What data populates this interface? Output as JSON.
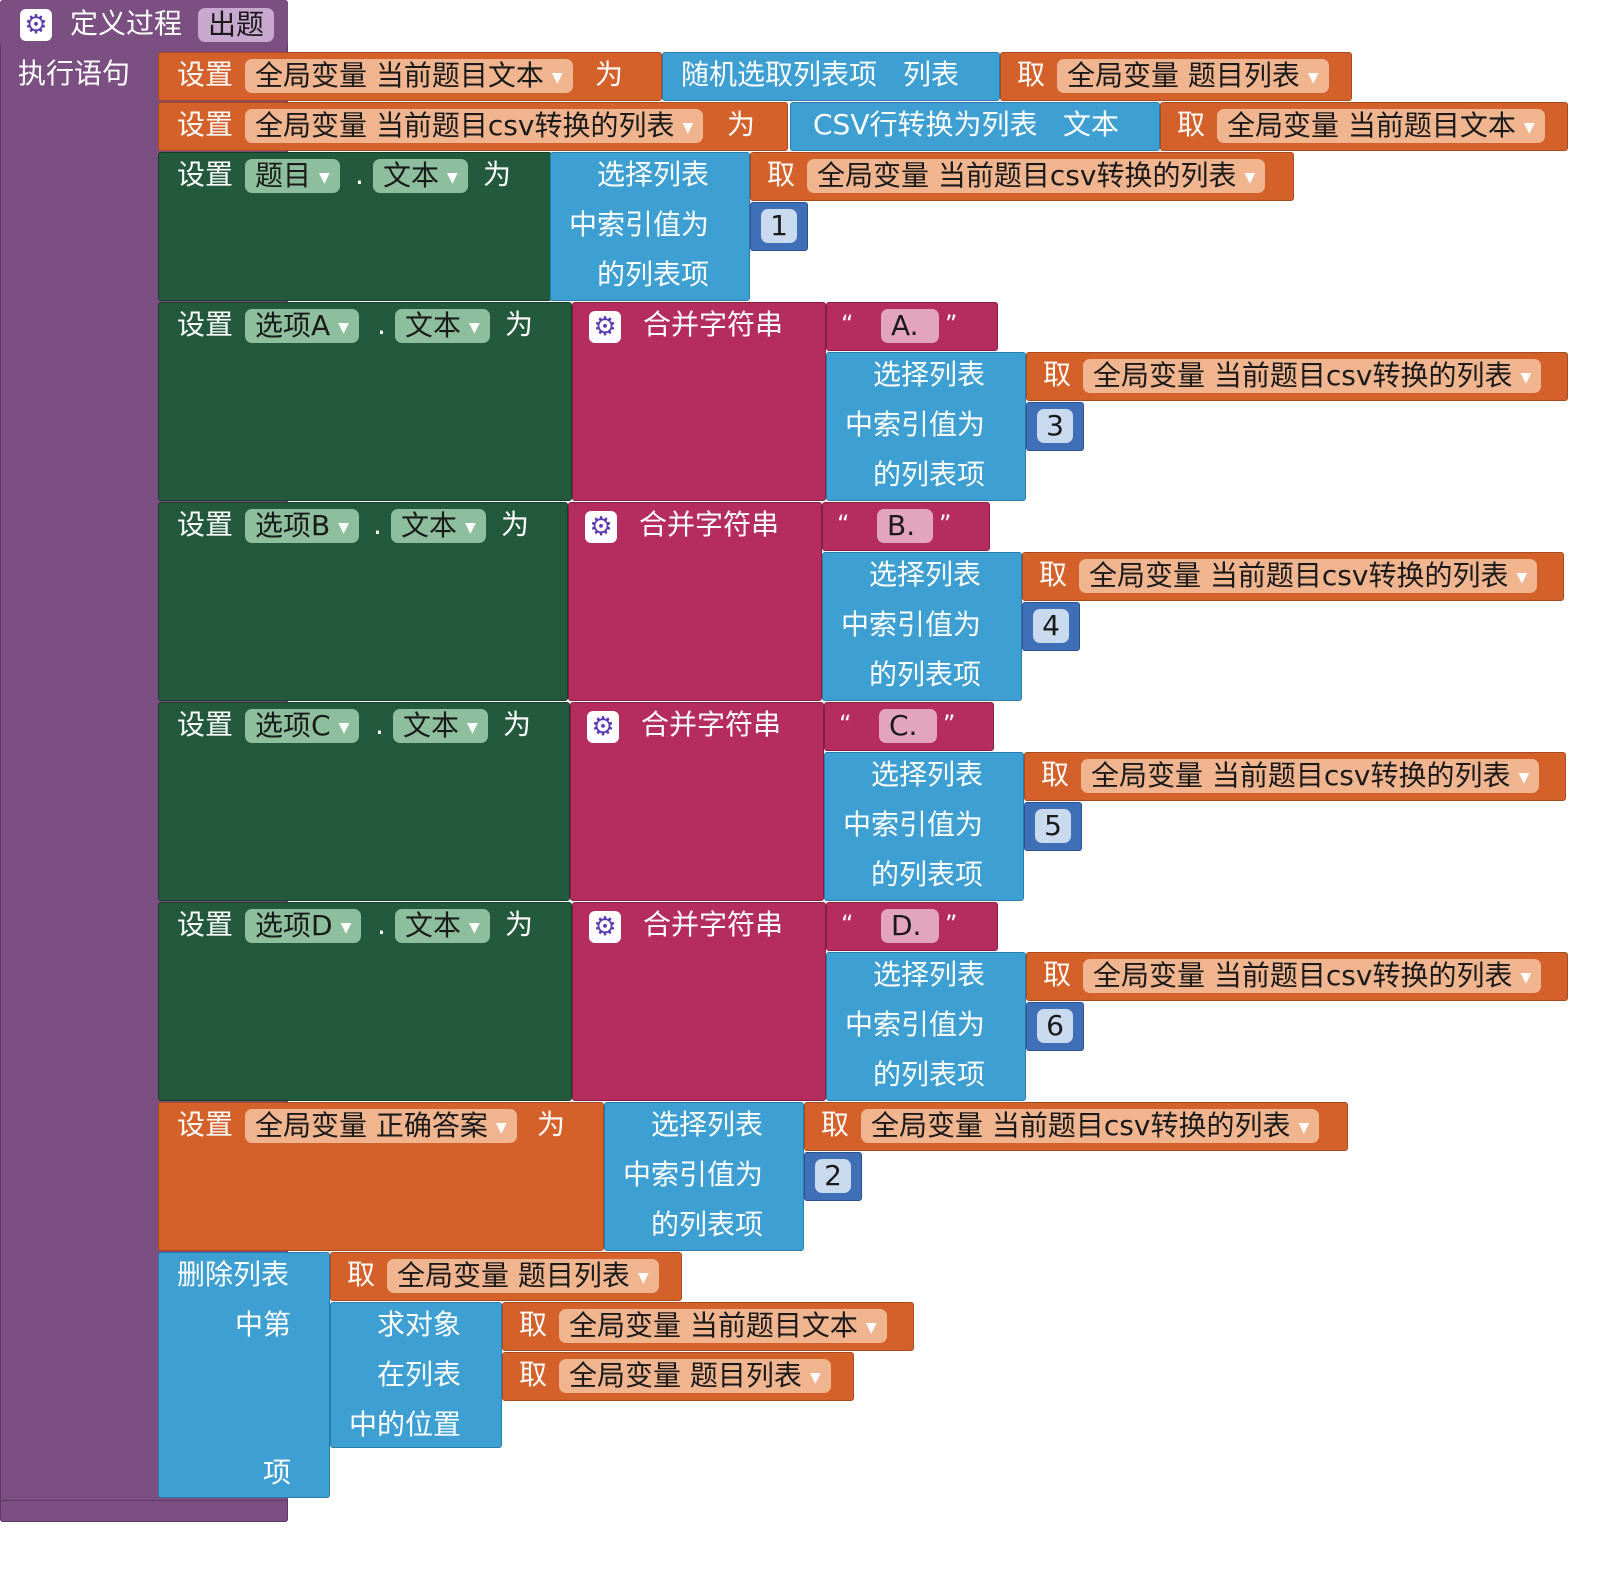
{
  "colors": {
    "procedure": "#7b4f82",
    "variable_set": "#d5612a",
    "component_set": "#235a3e",
    "list": "#3d9fd2",
    "text": "#b52c5e",
    "number": "#3f6fb7"
  },
  "icons": {
    "mutator": "gear-icon",
    "dropdown": "triangle-down-icon"
  },
  "procedure": {
    "label": "定义过程",
    "name": "出题",
    "do_label": "执行语句"
  },
  "kw": {
    "set": "设置",
    "to": "为",
    "get": "取",
    "dot": ".",
    "random_item": "随机选取列表项",
    "list_arg": "列表",
    "csv_row": "CSV行转换为列表",
    "text_arg": "文本",
    "select_item": "选择列表",
    "index_is": "中索引值为",
    "list_item": "的列表项",
    "join": "合并字符串",
    "open_quote": "“",
    "close_quote": "”",
    "remove_item": "删除列表",
    "mid_the": "中第",
    "index_in_list": "求对象",
    "in_list": "在列表",
    "position_in": "中的位置",
    "item": "项"
  },
  "vars": {
    "current_text": "全局变量 当前题目文本",
    "question_list": "全局变量 题目列表",
    "current_csv": "全局变量 当前题目csv转换的列表",
    "correct": "全局变量 正确答案"
  },
  "components": {
    "question": "题目",
    "a": "选项A",
    "b": "选项B",
    "c": "选项C",
    "d": "选项D",
    "text_prop": "文本"
  },
  "strings": {
    "a": "A.",
    "b": "B.",
    "c": "C.",
    "d": "D."
  },
  "indexes": {
    "question": "1",
    "a": "3",
    "b": "4",
    "c": "5",
    "d": "6",
    "correct": "2"
  }
}
